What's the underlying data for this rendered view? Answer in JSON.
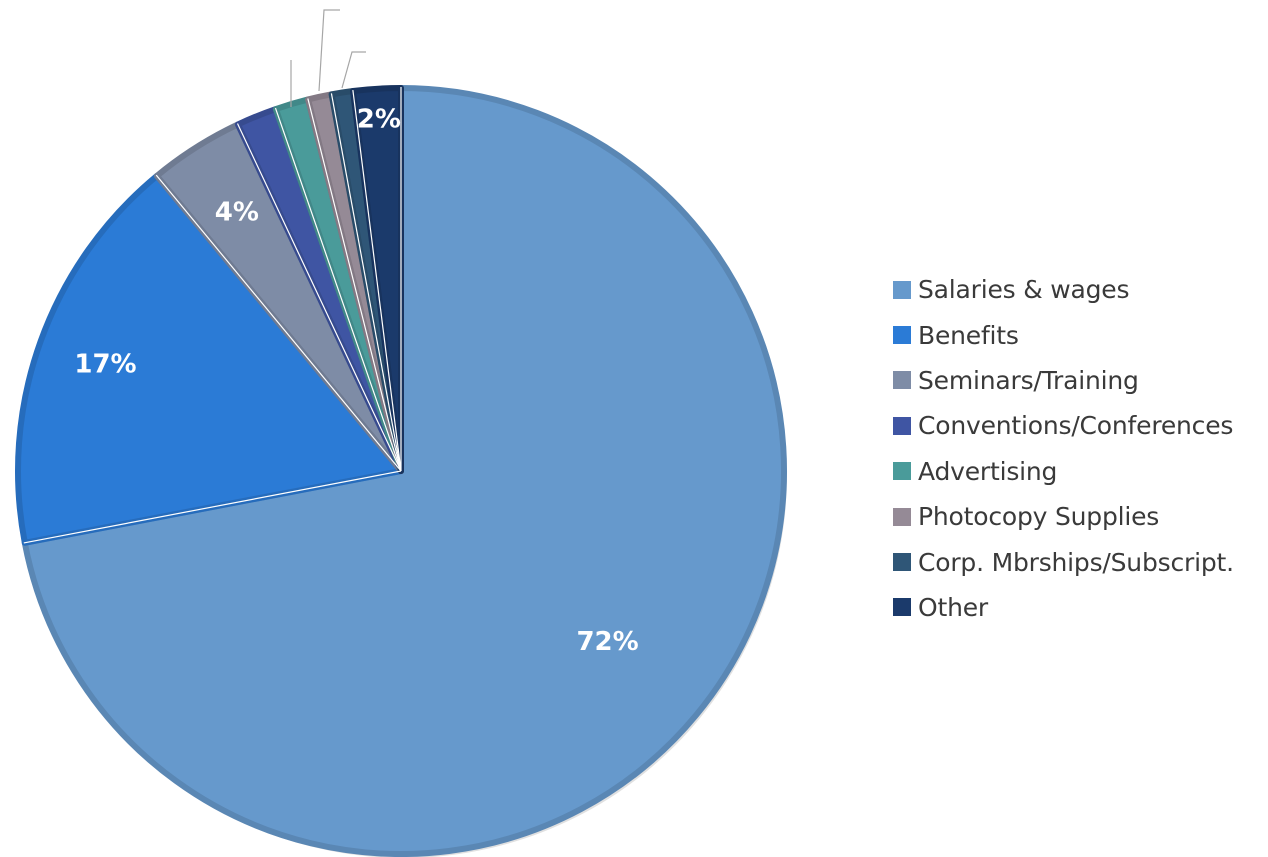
{
  "chart_data": {
    "type": "pie",
    "categories": [
      "Salaries & wages",
      "Benefits",
      "Seminars/Training",
      "Conventions/Conferences",
      "Advertising",
      "Photocopy Supplies",
      "Corp. Mbrships/Subscript.",
      "Other"
    ],
    "values": [
      72,
      17,
      4,
      1.7,
      1.4,
      1.0,
      0.9,
      2
    ],
    "data_labels": [
      "72%",
      "17%",
      "4%",
      "",
      "",
      "",
      "",
      "2%"
    ],
    "colors": [
      "#6699cc",
      "#2b7bd6",
      "#7e8ca6",
      "#3f55a3",
      "#4a9b9a",
      "#958a96",
      "#2f5677",
      "#1b3a6b"
    ],
    "start_angle": "12 o'clock",
    "direction": "clockwise",
    "legend_position": "right"
  }
}
